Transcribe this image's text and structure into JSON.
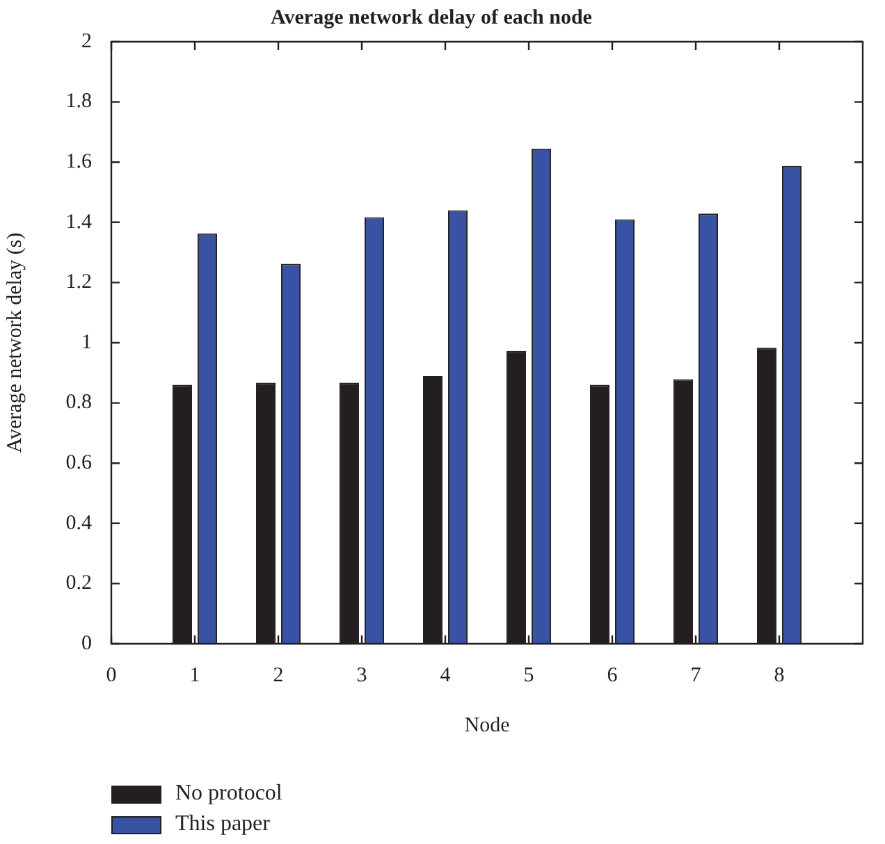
{
  "chart_data": {
    "type": "bar",
    "title": "Average network delay of each node",
    "xlabel": "Node",
    "ylabel": "Average network delay (s)",
    "x": [
      1,
      2,
      3,
      4,
      5,
      6,
      7,
      8
    ],
    "series": [
      {
        "name": "No protocol",
        "color": "#231f20",
        "values": [
          0.86,
          0.867,
          0.867,
          0.889,
          0.973,
          0.86,
          0.879,
          0.983
        ]
      },
      {
        "name": "This paper",
        "color": "#3853a4",
        "values": [
          1.363,
          1.262,
          1.417,
          1.44,
          1.645,
          1.41,
          1.429,
          1.587
        ]
      }
    ],
    "xlim": [
      0,
      9
    ],
    "xticks": [
      0,
      1,
      2,
      3,
      4,
      5,
      6,
      7,
      8
    ],
    "ylim": [
      0,
      2
    ],
    "yticks": [
      0,
      0.2,
      0.4,
      0.6,
      0.8,
      1,
      1.2,
      1.4,
      1.6,
      1.8,
      2
    ],
    "grid": false,
    "legend": "bottom"
  }
}
